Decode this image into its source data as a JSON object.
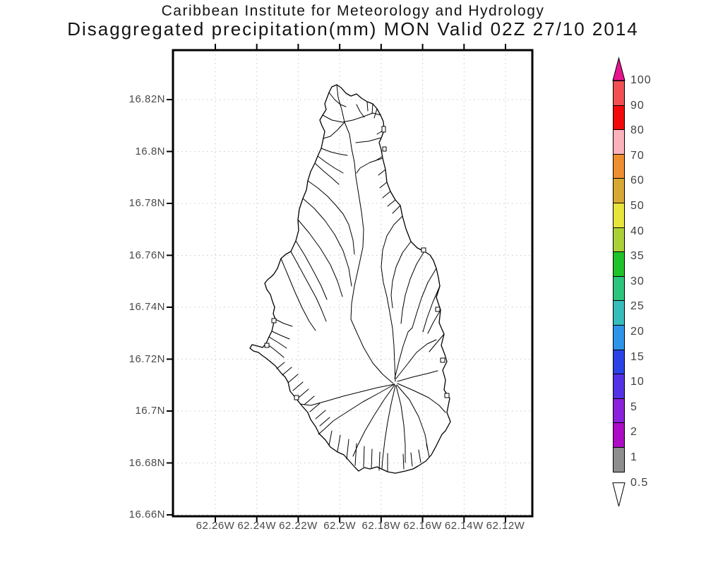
{
  "header": {
    "line1": "Caribbean Institute for Meteorology and Hydrology",
    "line2": "Disaggregated precipitation(mm) MON Valid 02Z 27/10 2014"
  },
  "map": {
    "lat_tick_labels": [
      "16.82N",
      "16.8N",
      "16.78N",
      "16.76N",
      "16.74N",
      "16.72N",
      "16.7N",
      "16.68N",
      "16.66N"
    ],
    "lon_tick_labels": [
      "62.26W",
      "62.24W",
      "62.22W",
      "62.2W",
      "62.18W",
      "62.16W",
      "62.14W",
      "62.12W"
    ]
  },
  "colorbar": {
    "tick_labels": [
      "100",
      "90",
      "80",
      "70",
      "60",
      "50",
      "40",
      "35",
      "30",
      "25",
      "20",
      "15",
      "10",
      "5",
      "2",
      "1",
      "0.5"
    ],
    "segment_colors": [
      "#f05052",
      "#f20a0a",
      "#fbb2ba",
      "#ef8e2e",
      "#d7a833",
      "#e7e43c",
      "#abd035",
      "#1dc328",
      "#2bc57e",
      "#36bcba",
      "#2d95e9",
      "#2a43e6",
      "#5431e4",
      "#8b21da",
      "#ac0cc3",
      "#8e8e8e"
    ],
    "top_arrow_color": "#e8148f",
    "bottom_arrow_color": "#ffffff"
  },
  "style": {
    "grid_color": "#c8c8c8",
    "frame_color": "#000000",
    "coastline_color": "#000000"
  }
}
